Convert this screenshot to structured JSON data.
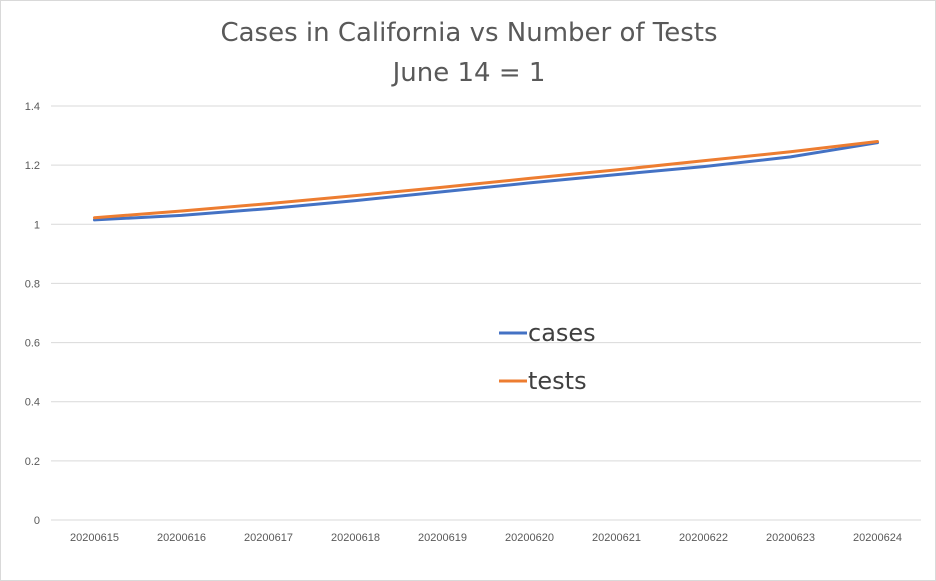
{
  "chart_data": {
    "type": "line",
    "title": "Cases in California vs Number of Tests",
    "subtitle": "June 14 = 1",
    "xlabel": "",
    "ylabel": "",
    "categories": [
      "20200615",
      "20200616",
      "20200617",
      "20200618",
      "20200619",
      "20200620",
      "20200621",
      "20200622",
      "20200623",
      "20200624"
    ],
    "ylim": [
      0,
      1.4
    ],
    "yticks": [
      "0",
      "0.2",
      "0.4",
      "0.6",
      "0.8",
      "1",
      "1.2",
      "1.4"
    ],
    "grid": true,
    "legend_position": "center",
    "series": [
      {
        "name": "cases",
        "color": "#4472C4",
        "values": [
          1.015,
          1.03,
          1.053,
          1.08,
          1.11,
          1.14,
          1.168,
          1.195,
          1.228,
          1.276
        ]
      },
      {
        "name": "tests",
        "color": "#ED7D31",
        "values": [
          1.022,
          1.045,
          1.07,
          1.097,
          1.125,
          1.155,
          1.184,
          1.215,
          1.245,
          1.28
        ]
      }
    ]
  }
}
